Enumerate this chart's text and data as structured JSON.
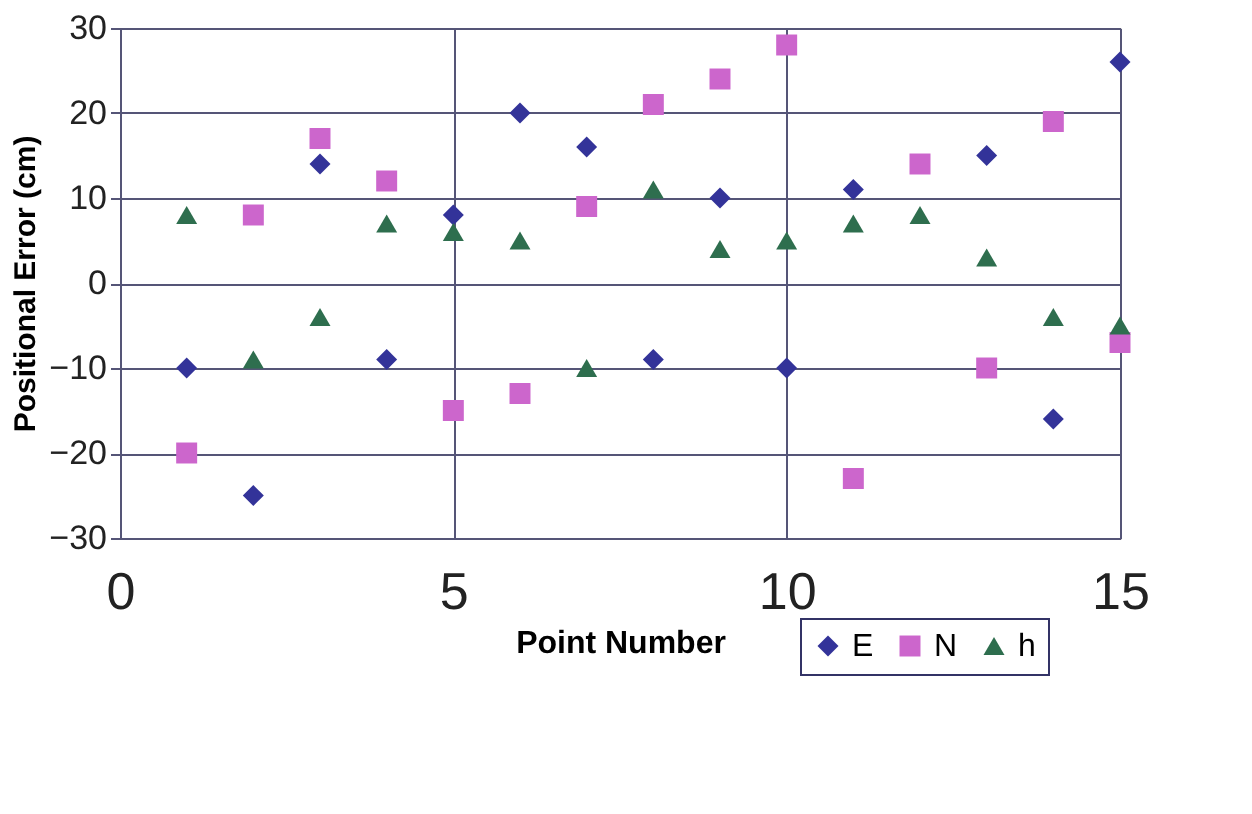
{
  "chart_data": {
    "type": "scatter",
    "xlabel": "Point Number",
    "ylabel": "Positional Error (cm)",
    "x": [
      1,
      2,
      3,
      4,
      5,
      6,
      7,
      8,
      9,
      10,
      11,
      12,
      13,
      14,
      15
    ],
    "series": [
      {
        "name": "E",
        "color": "#333399",
        "marker": "diamond",
        "values": [
          -10,
          -25,
          14,
          -9,
          8,
          20,
          16,
          -9,
          10,
          -10,
          11,
          null,
          15,
          -16,
          26
        ]
      },
      {
        "name": "N",
        "color": "#cc66cc",
        "marker": "square",
        "values": [
          -20,
          8,
          17,
          12,
          -15,
          -13,
          9,
          21,
          24,
          28,
          -23,
          14,
          -10,
          19,
          -7
        ]
      },
      {
        "name": "h",
        "color": "#2e6e4e",
        "marker": "triangle",
        "values": [
          8,
          -9,
          -4,
          7,
          6,
          5,
          -10,
          11,
          4,
          5,
          7,
          8,
          3,
          -4,
          -5
        ]
      }
    ],
    "xlim": [
      0,
      15
    ],
    "xticks": [
      0,
      5,
      10,
      15
    ],
    "ylim": [
      -30,
      30
    ],
    "yticks": [
      -30,
      -20,
      -10,
      0,
      10,
      20,
      30
    ],
    "grid": true,
    "legend": "bottom right"
  }
}
